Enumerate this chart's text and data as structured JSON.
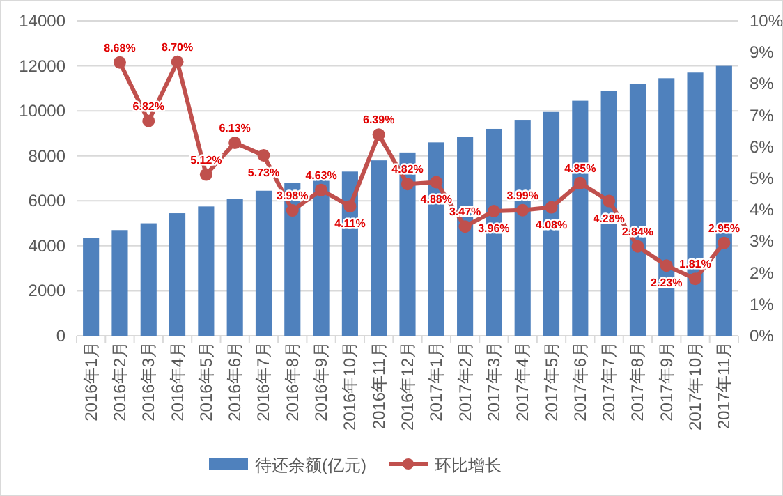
{
  "chart_data": {
    "type": "bar",
    "categories": [
      "2016年1月",
      "2016年2月",
      "2016年3月",
      "2016年4月",
      "2016年5月",
      "2016年6月",
      "2016年7月",
      "2016年8月",
      "2016年9月",
      "2016年10月",
      "2016年11月",
      "2016年12月",
      "2017年1月",
      "2017年2月",
      "2017年3月",
      "2017年4月",
      "2017年5月",
      "2017年6月",
      "2017年7月",
      "2017年8月",
      "2017年9月",
      "2017年10月",
      "2017年11月"
    ],
    "series": [
      {
        "name": "待还余额(亿元)",
        "color": "#4f81bd",
        "values": [
          4350,
          4700,
          5000,
          5450,
          5750,
          6100,
          6450,
          6800,
          7000,
          7300,
          7800,
          8150,
          8600,
          8850,
          9200,
          9600,
          9950,
          10450,
          10900,
          11200,
          11450,
          11700,
          12000
        ]
      },
      {
        "name": "环比增长",
        "type": "line",
        "axis": "y2",
        "color": "#c0504d",
        "marker": "circle",
        "values": [
          null,
          8.68,
          6.82,
          8.7,
          5.12,
          6.13,
          5.73,
          3.98,
          4.63,
          4.11,
          6.39,
          4.82,
          4.88,
          3.47,
          3.96,
          3.99,
          4.08,
          4.85,
          4.28,
          2.84,
          2.23,
          1.81,
          2.95
        ],
        "value_labels": [
          null,
          "8.68%",
          "6.82%",
          "8.70%",
          "5.12%",
          "6.13%",
          "5.73%",
          "3.98%",
          "4.63%",
          "4.11%",
          "6.39%",
          "4.82%",
          "4.88%",
          "3.47%",
          "3.96%",
          "3.99%",
          "4.08%",
          "4.85%",
          "4.28%",
          "2.84%",
          "2.23%",
          "1.81%",
          "2.95%"
        ]
      }
    ],
    "ylim": [
      0,
      14000
    ],
    "yticks": [
      0,
      2000,
      4000,
      6000,
      8000,
      10000,
      12000,
      14000
    ],
    "y2lim": [
      0,
      10
    ],
    "y2ticks": [
      {
        "value": 0,
        "label": "0%"
      },
      {
        "value": 1,
        "label": "1%"
      },
      {
        "value": 2,
        "label": "2%"
      },
      {
        "value": 3,
        "label": "3%"
      },
      {
        "value": 4,
        "label": "4%"
      },
      {
        "value": 5,
        "label": "5%"
      },
      {
        "value": 6,
        "label": "6%"
      },
      {
        "value": 7,
        "label": "7%"
      },
      {
        "value": 8,
        "label": "8%"
      },
      {
        "value": 9,
        "label": "9%"
      },
      {
        "value": 10,
        "label": "10%"
      }
    ],
    "grid": "y",
    "legend": "bottom"
  }
}
